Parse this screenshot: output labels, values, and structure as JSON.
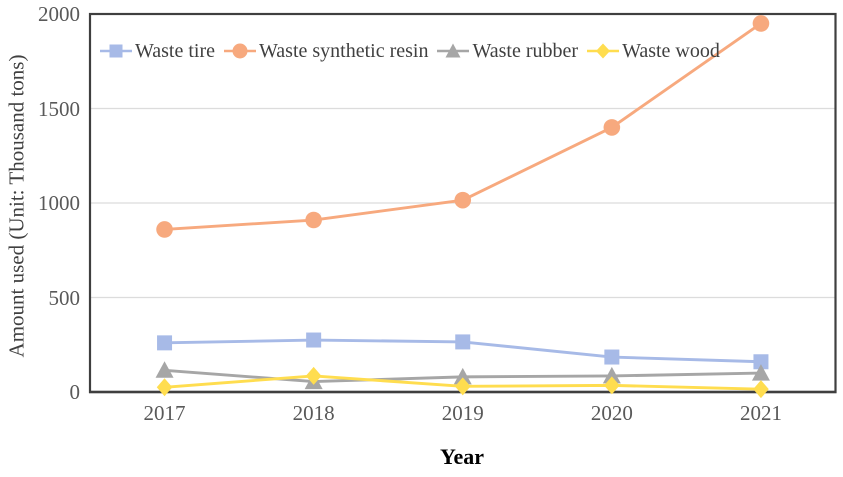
{
  "chart_data": {
    "type": "line",
    "title": "",
    "categories": [
      "2017",
      "2018",
      "2019",
      "2020",
      "2021"
    ],
    "series": [
      {
        "name": "Waste tire",
        "marker": "square",
        "color": "#A7BAE7",
        "values": [
          260,
          275,
          265,
          185,
          160
        ]
      },
      {
        "name": "Waste synthetic resin",
        "marker": "circle",
        "color": "#F7A97E",
        "values": [
          860,
          910,
          1015,
          1400,
          1950
        ]
      },
      {
        "name": "Waste rubber",
        "marker": "triangle",
        "color": "#A6A6A6",
        "values": [
          115,
          55,
          80,
          85,
          100
        ]
      },
      {
        "name": "Waste wood",
        "marker": "diamond",
        "color": "#FFDD4F",
        "values": [
          25,
          85,
          30,
          35,
          15
        ]
      }
    ],
    "xlabel": "Year",
    "ylabel": "Amount used (Unit: Thousand tons)",
    "ylim": [
      0,
      2000
    ],
    "yticks": [
      0,
      500,
      1000,
      1500,
      2000
    ],
    "grid": "horizontal",
    "legend_position": "inside-top-left",
    "colors": {
      "background": "#FFFFFF",
      "plot_border": "#3F3F3F",
      "gridline": "#DCDCDC",
      "tick_label": "#595959",
      "axis_title": "#404040",
      "x_title": "#000000",
      "legend_text": "#404040"
    }
  }
}
